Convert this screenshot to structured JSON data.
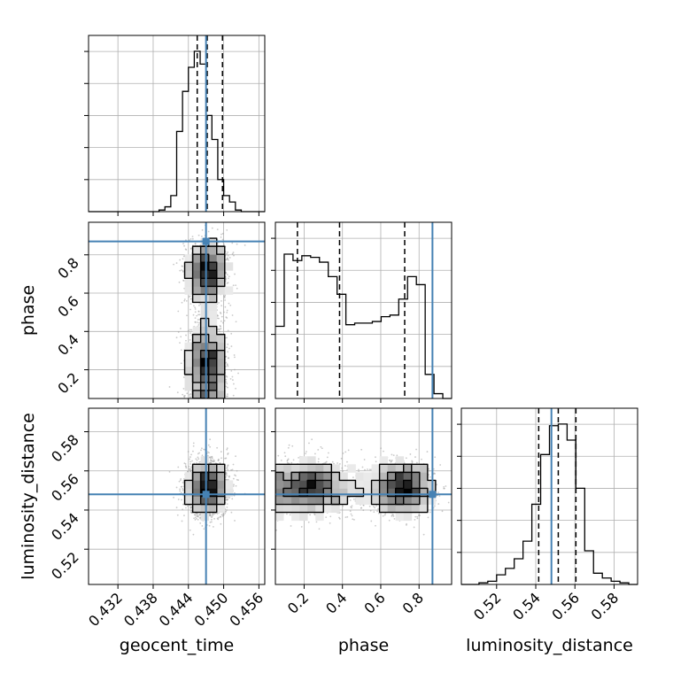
{
  "chart_data": {
    "type": "corner",
    "parameters": [
      "geocent_time",
      "phase",
      "luminosity_distance"
    ],
    "axis_labels": {
      "geocent_time": "geocent_time",
      "phase": "phase",
      "luminosity_distance": "luminosity_distance"
    },
    "ranges": {
      "geocent_time": [
        0.427,
        0.457
      ],
      "phase": [
        0.05,
        0.97
      ],
      "luminosity_distance": [
        0.502,
        0.592
      ]
    },
    "ticks": {
      "geocent_time": [
        0.432,
        0.438,
        0.444,
        0.45,
        0.456
      ],
      "phase": [
        0.2,
        0.4,
        0.6,
        0.8
      ],
      "luminosity_distance": [
        0.52,
        0.54,
        0.56,
        0.58
      ]
    },
    "tick_labels": {
      "geocent_time": [
        "0.432",
        "0.438",
        "0.444",
        "0.450",
        "0.456"
      ],
      "phase": [
        "0.2",
        "0.4",
        "0.6",
        "0.8"
      ],
      "luminosity_distance": [
        "0.52",
        "0.54",
        "0.56",
        "0.58"
      ]
    },
    "truths": {
      "geocent_time": 0.447,
      "phase": 0.87,
      "luminosity_distance": 0.548
    },
    "quantiles": {
      "geocent_time": [
        0.4455,
        0.4472,
        0.4498
      ],
      "phase": [
        0.165,
        0.385,
        0.725
      ],
      "luminosity_distance": [
        0.5415,
        0.5515,
        0.5605
      ]
    },
    "histograms": {
      "geocent_time": [
        0,
        0,
        0,
        0,
        0,
        0,
        0,
        0,
        0,
        0,
        0,
        0,
        0.01,
        0.03,
        0.1,
        0.5,
        0.75,
        0.9,
        1.0,
        0.92,
        0.6,
        0.45,
        0.2,
        0.1,
        0.06,
        0.01,
        0,
        0,
        0,
        0
      ],
      "phase": [
        0.45,
        0.9,
        0.86,
        0.89,
        0.88,
        0.85,
        0.76,
        0.65,
        0.46,
        0.47,
        0.47,
        0.48,
        0.51,
        0.52,
        0.62,
        0.76,
        0.71,
        0.15,
        0.03,
        0.0
      ],
      "luminosity_distance": [
        0.0,
        0.0,
        0.01,
        0.02,
        0.06,
        0.1,
        0.16,
        0.27,
        0.5,
        0.81,
        0.99,
        1.0,
        0.9,
        0.6,
        0.21,
        0.07,
        0.04,
        0.02,
        0.01,
        0.0
      ]
    },
    "histogram_style": "step",
    "grid": true,
    "colors": {
      "truth": "#4682b4",
      "contour": "#000000",
      "hist": "#000000",
      "quantile": "#000000",
      "points": "#9e9e9e",
      "grid": "#b0b0b0"
    }
  }
}
